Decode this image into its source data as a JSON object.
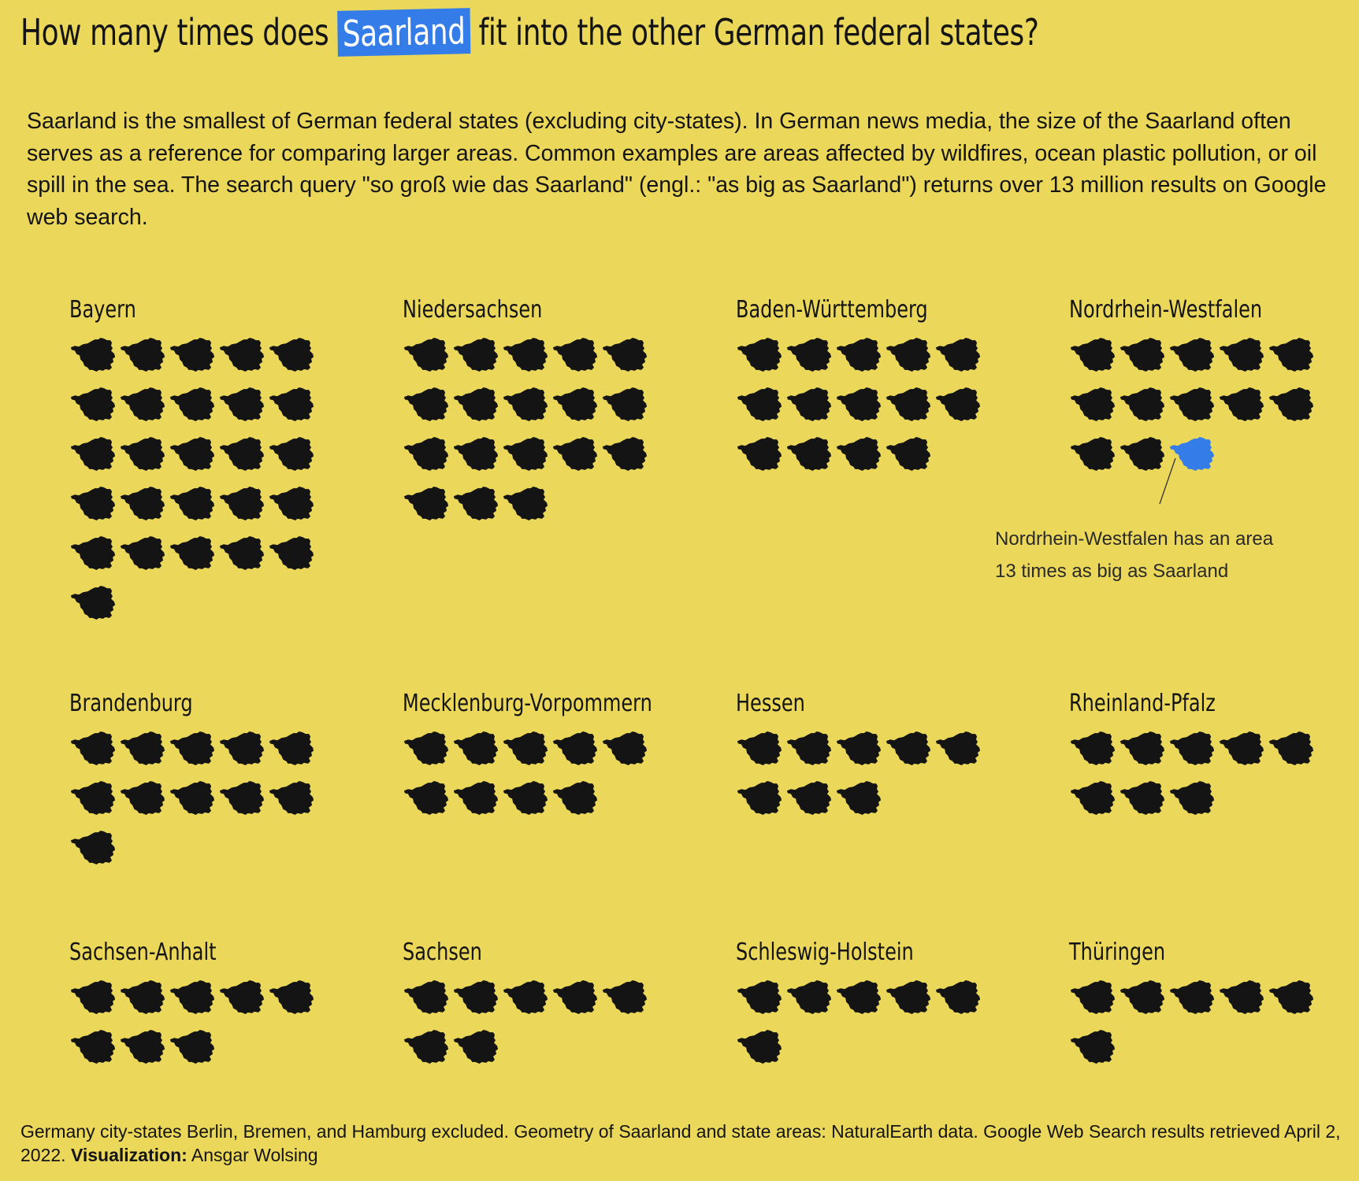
{
  "title": {
    "before": "How many times does ",
    "highlight": "Saarland",
    "after": " fit into the other German federal states?"
  },
  "intro": "Saarland is the smallest of German federal states (excluding city-states). In German news media, the size of the Saarland often serves as a reference for comparing larger areas. Common examples are areas affected by wildfires, ocean plastic pollution, or oil spill in the sea. The search query \"so groß wie das Saarland\" (engl.: \"as big as Saarland\") returns over 13 million results on Google web search.",
  "colors": {
    "background": "#EBD85A",
    "icon": "#141414",
    "highlight": "#347DE8"
  },
  "chart_data": {
    "type": "pictogram",
    "unit_icon": "saarland-shape",
    "icons_per_row": 5,
    "states": [
      {
        "name": "Bayern",
        "count": 26
      },
      {
        "name": "Niedersachsen",
        "count": 18
      },
      {
        "name": "Baden-Württemberg",
        "count": 14
      },
      {
        "name": "Nordrhein-Westfalen",
        "count": 13,
        "highlight_last": true
      },
      {
        "name": "Brandenburg",
        "count": 11
      },
      {
        "name": "Mecklenburg-Vorpommern",
        "count": 9
      },
      {
        "name": "Hessen",
        "count": 8
      },
      {
        "name": "Rheinland-Pfalz",
        "count": 8
      },
      {
        "name": "Sachsen-Anhalt",
        "count": 8
      },
      {
        "name": "Sachsen",
        "count": 7
      },
      {
        "name": "Schleswig-Holstein",
        "count": 6
      },
      {
        "name": "Thüringen",
        "count": 6
      }
    ]
  },
  "annotation": {
    "line1": "Nordrhein-Westfalen has an area",
    "line2": "13 times as big as Saarland"
  },
  "footer": {
    "text": "Germany city-states Berlin, Bremen, and Hamburg excluded. Geometry of Saarland and state areas: NaturalEarth data. Google Web Search results retrieved April 2, 2022. ",
    "credit_label": "Visualization:",
    "credit_name": " Ansgar Wolsing"
  }
}
